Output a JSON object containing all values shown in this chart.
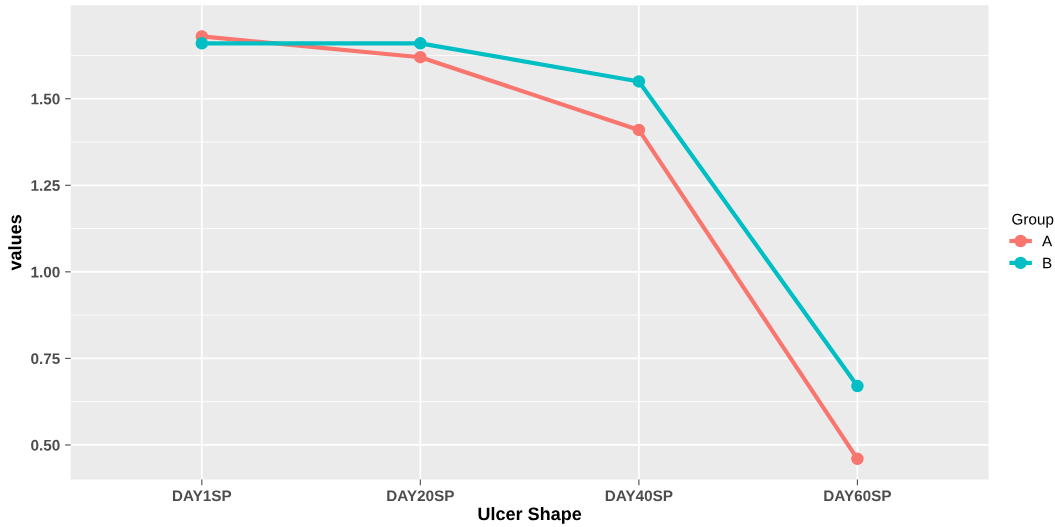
{
  "chart_data": {
    "type": "line",
    "xlabel": "Ulcer Shape",
    "ylabel": "values",
    "legend_title": "Group",
    "categories": [
      "DAY1SP",
      "DAY20SP",
      "DAY40SP",
      "DAY60SP"
    ],
    "series": [
      {
        "name": "A",
        "color": "#f8766d",
        "values": [
          1.68,
          1.62,
          1.41,
          0.46
        ]
      },
      {
        "name": "B",
        "color": "#00bfc4",
        "values": [
          1.66,
          1.66,
          1.55,
          0.67
        ]
      }
    ],
    "ylim": [
      0.4,
      1.77
    ],
    "yticks": [
      {
        "value": 0.5,
        "label": "0.50"
      },
      {
        "value": 0.75,
        "label": "0.75"
      },
      {
        "value": 1.0,
        "label": "1.00"
      },
      {
        "value": 1.25,
        "label": "1.25"
      },
      {
        "value": 1.5,
        "label": "1.50"
      }
    ],
    "grid": true,
    "legend": "right",
    "marker": "circle",
    "line_style": "solid"
  }
}
